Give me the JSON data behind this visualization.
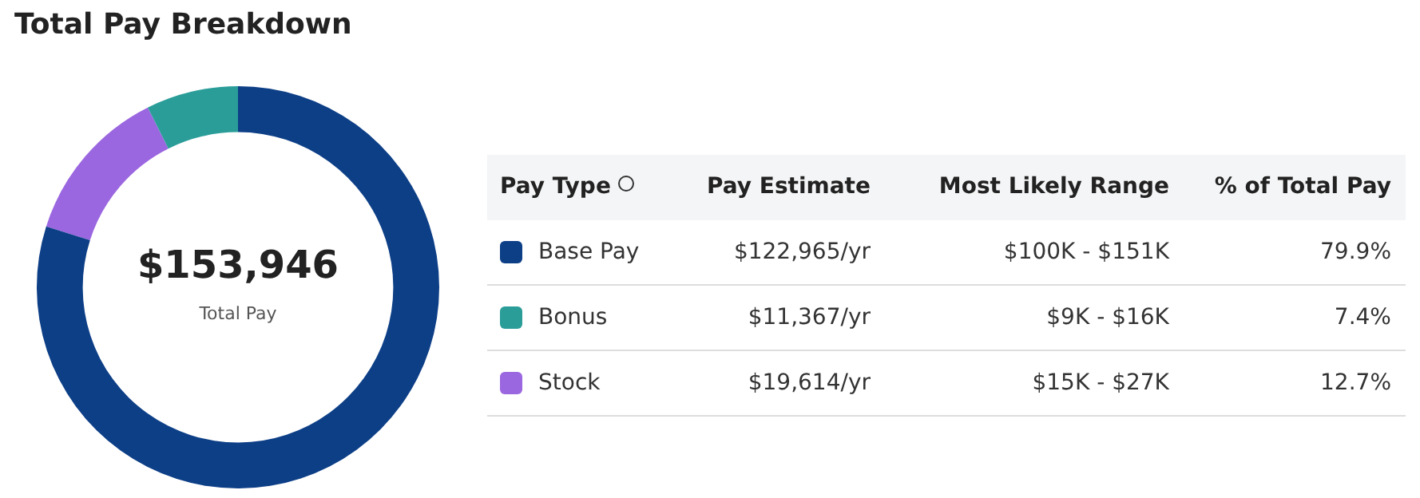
{
  "chart_data": {
    "type": "donut",
    "title": "Total Pay Breakdown",
    "legend_title": "Pay Type",
    "legend": "right",
    "categories": [
      "Base Pay",
      "Bonus",
      "Stock"
    ],
    "values": [
      79.9,
      7.4,
      12.7
    ],
    "colors": [
      "#0d3f87",
      "#2a9d99",
      "#9b67e0"
    ],
    "value_labels": [
      "79.9%",
      "7.4%",
      "12.7%"
    ],
    "annotations": [
      "$153,946",
      "Total Pay",
      "Pay Estimate",
      "Most Likely Range",
      "% of Total Pay",
      "$122,965/yr",
      "$11,367/yr",
      "$19,614/yr",
      "$100K - $151K",
      "$9K - $16K",
      "$15K - $27K"
    ]
  }
}
